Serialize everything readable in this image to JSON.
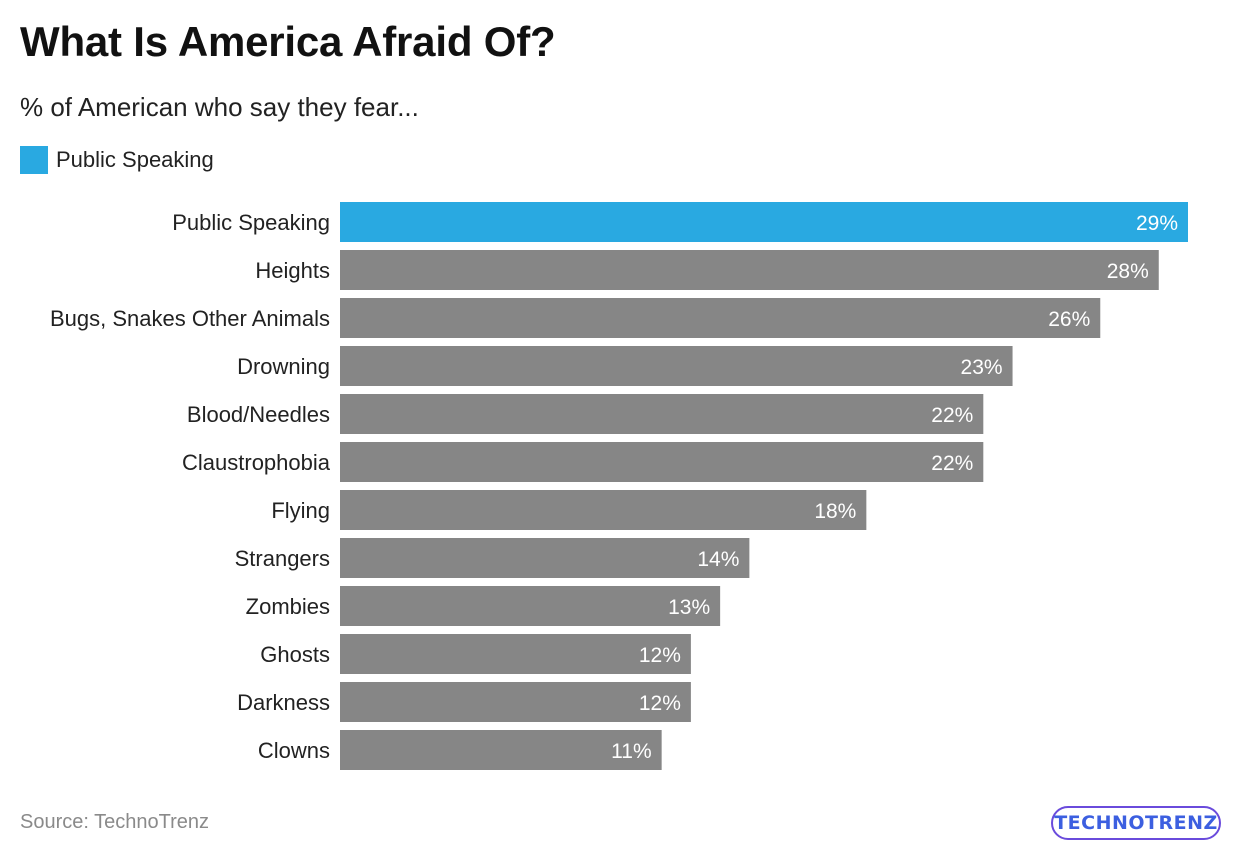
{
  "header": {
    "title": "What Is America Afraid Of?",
    "subtitle": "% of American who say they fear..."
  },
  "legend": {
    "label": "Public Speaking",
    "color": "#29a9e1"
  },
  "colors": {
    "highlight": "#29a9e1",
    "default_bar": "#868686"
  },
  "chart_data": {
    "type": "bar",
    "orientation": "horizontal",
    "categories": [
      "Public Speaking",
      "Heights",
      "Bugs, Snakes Other Animals",
      "Drowning",
      "Blood/Needles",
      "Claustrophobia",
      "Flying",
      "Strangers",
      "Zombies",
      "Ghosts",
      "Darkness",
      "Clowns"
    ],
    "values": [
      29,
      28,
      26,
      23,
      22,
      22,
      18,
      14,
      13,
      12,
      12,
      11
    ],
    "value_labels": [
      "29%",
      "28%",
      "26%",
      "23%",
      "22%",
      "22%",
      "18%",
      "14%",
      "13%",
      "12%",
      "12%",
      "11%"
    ],
    "highlighted_category": "Public Speaking",
    "title": "What Is America Afraid Of?",
    "subtitle": "% of American who say they fear...",
    "xlim": [
      0,
      29
    ],
    "grid": false,
    "legend_position": "top-left"
  },
  "footer": {
    "source": "Source: TechnoTrenz",
    "logo_text": "TECHNOTRENZ"
  }
}
